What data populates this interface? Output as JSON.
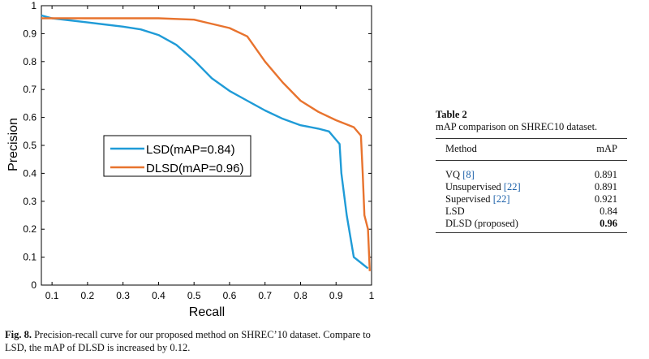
{
  "chart_data": {
    "type": "line",
    "xlabel": "Recall",
    "ylabel": "Precision",
    "xlim": [
      0.07,
      1.0
    ],
    "ylim": [
      0,
      1
    ],
    "xticks": [
      "0.1",
      "0.2",
      "0.3",
      "0.4",
      "0.5",
      "0.6",
      "0.7",
      "0.8",
      "0.9",
      "1"
    ],
    "xtick_values": [
      0.1,
      0.2,
      0.3,
      0.4,
      0.5,
      0.6,
      0.7,
      0.8,
      0.9,
      1.0
    ],
    "yticks": [
      "0",
      "0.1",
      "0.2",
      "0.3",
      "0.4",
      "0.5",
      "0.6",
      "0.7",
      "0.8",
      "0.9",
      "1"
    ],
    "ytick_values": [
      0,
      0.1,
      0.2,
      0.3,
      0.4,
      0.5,
      0.6,
      0.7,
      0.8,
      0.9,
      1.0
    ],
    "legend_position": "center-left",
    "series": [
      {
        "name": "LSD(mAP=0.84)",
        "color": "#1f9bd7",
        "x": [
          0.07,
          0.1,
          0.2,
          0.3,
          0.35,
          0.4,
          0.45,
          0.5,
          0.55,
          0.6,
          0.65,
          0.7,
          0.75,
          0.8,
          0.85,
          0.88,
          0.9,
          0.91,
          0.915,
          0.93,
          0.95,
          0.97,
          0.99
        ],
        "y": [
          0.965,
          0.955,
          0.94,
          0.925,
          0.915,
          0.895,
          0.86,
          0.805,
          0.74,
          0.695,
          0.66,
          0.625,
          0.595,
          0.572,
          0.56,
          0.55,
          0.52,
          0.505,
          0.4,
          0.25,
          0.1,
          0.08,
          0.06
        ]
      },
      {
        "name": "DLSD(mAP=0.96)",
        "color": "#e8732e",
        "x": [
          0.07,
          0.1,
          0.2,
          0.3,
          0.4,
          0.5,
          0.6,
          0.65,
          0.7,
          0.75,
          0.8,
          0.85,
          0.9,
          0.95,
          0.97,
          0.975,
          0.98,
          0.99,
          0.995
        ],
        "y": [
          0.955,
          0.955,
          0.955,
          0.955,
          0.955,
          0.95,
          0.92,
          0.89,
          0.8,
          0.725,
          0.66,
          0.62,
          0.59,
          0.565,
          0.535,
          0.4,
          0.25,
          0.2,
          0.05
        ]
      }
    ]
  },
  "figure": {
    "label": "Fig. 8.",
    "text": "Precision-recall curve for our proposed method on SHREC’10 dataset. Compare to LSD, the mAP of DLSD is increased by 0.12."
  },
  "table": {
    "label": "Table 2",
    "caption": "mAP comparison on SHREC10 dataset.",
    "headers": {
      "method": "Method",
      "map": "mAP"
    },
    "rows": [
      {
        "method": "VQ",
        "ref": "[8]",
        "map": "0.891"
      },
      {
        "method": "Unsupervised",
        "ref": "[22]",
        "map": "0.891"
      },
      {
        "method": "Supervised",
        "ref": "[22]",
        "map": "0.921"
      },
      {
        "method": "LSD",
        "ref": "",
        "map": "0.84"
      },
      {
        "method": "DLSD (proposed)",
        "ref": "",
        "map": "0.96"
      }
    ]
  }
}
